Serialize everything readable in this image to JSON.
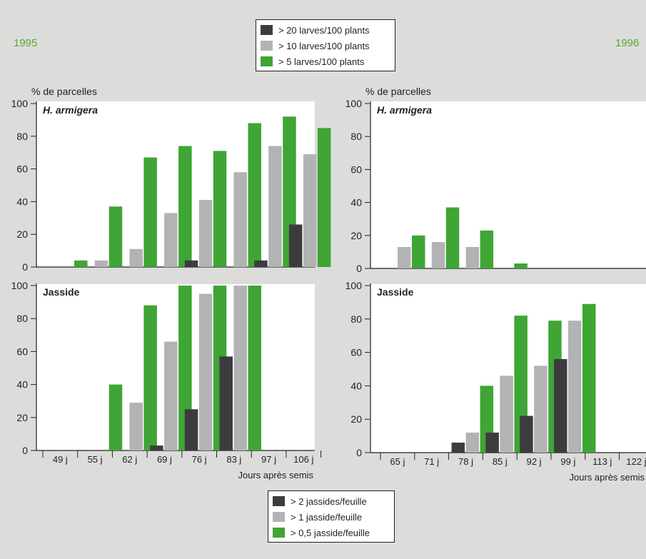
{
  "years": {
    "left": "1995",
    "right": "1996"
  },
  "colors": {
    "dark": "#3c3c3e",
    "grey": "#b3b3b5",
    "green": "#3fa535",
    "panel": "#ffffff",
    "background": "#dcdcdb"
  },
  "legend_top": {
    "items": [
      {
        "label": "> 20 larves/100 plants",
        "color": "#3c3c3e"
      },
      {
        "label": "> 10 larves/100 plants",
        "color": "#b3b3b5"
      },
      {
        "label": "> 5 larves/100 plants",
        "color": "#3fa535"
      }
    ]
  },
  "legend_bottom": {
    "items": [
      {
        "label": "> 2 jassides/feuille",
        "color": "#3c3c3e"
      },
      {
        "label": "> 1 jasside/feuille",
        "color": "#b3b3b5"
      },
      {
        "label": "> 0,5 jasside/feuille",
        "color": "#3fa535"
      }
    ]
  },
  "chart_data": [
    {
      "type": "bar",
      "year": "1995",
      "panel_label": "H. armigera",
      "ylabel": "% de parcelles",
      "ylim": [
        0,
        100
      ],
      "yticks": [
        0,
        20,
        40,
        60,
        80,
        100
      ],
      "categories": [
        "49 j",
        "55 j",
        "62 j",
        "69 j",
        "76 j",
        "83 j",
        "97 j",
        "106 j"
      ],
      "series": [
        {
          "name": "> 20 larves/100 plants",
          "values": [
            0,
            0,
            0,
            0,
            4,
            0,
            4,
            26
          ]
        },
        {
          "name": "> 10 larves/100 plants",
          "values": [
            0,
            4,
            11,
            33,
            41,
            58,
            74,
            69
          ]
        },
        {
          "name": "> 5 larves/100 plants",
          "values": [
            4,
            37,
            67,
            74,
            71,
            88,
            92,
            85
          ]
        }
      ]
    },
    {
      "type": "bar",
      "year": "1996",
      "panel_label": "H. armigera",
      "ylabel": "% de parcelles",
      "ylim": [
        0,
        100
      ],
      "yticks": [
        0,
        20,
        40,
        60,
        80,
        100
      ],
      "categories": [
        "65 j",
        "71 j",
        "78 j",
        "85 j",
        "92 j",
        "99 j",
        "113 j",
        "122 j"
      ],
      "series": [
        {
          "name": "> 20 larves/100 plants",
          "values": [
            0,
            0,
            0,
            0,
            0,
            0,
            0,
            0
          ]
        },
        {
          "name": "> 10 larves/100 plants",
          "values": [
            13,
            16,
            13,
            0,
            0,
            0,
            0,
            0
          ]
        },
        {
          "name": "> 5 larves/100 plants",
          "values": [
            20,
            37,
            23,
            3,
            0,
            0,
            0,
            0
          ]
        }
      ]
    },
    {
      "type": "bar",
      "year": "1995",
      "panel_label": "Jasside",
      "ylim": [
        0,
        100
      ],
      "yticks": [
        0,
        20,
        40,
        60,
        80,
        100
      ],
      "xlabel": "Jours après semis",
      "categories": [
        "49 j",
        "55 j",
        "62 j",
        "69 j",
        "76 j",
        "83 j",
        "97 j",
        "106 j"
      ],
      "series": [
        {
          "name": "> 2 jassides/feuille",
          "values": [
            0,
            0,
            0,
            3,
            25,
            57,
            0,
            0
          ]
        },
        {
          "name": "> 1 jasside/feuille",
          "values": [
            0,
            0,
            29,
            66,
            95,
            100,
            0,
            0
          ]
        },
        {
          "name": "> 0,5 jasside/feuille",
          "values": [
            0,
            40,
            88,
            100,
            100,
            100,
            0,
            0
          ]
        }
      ]
    },
    {
      "type": "bar",
      "year": "1996",
      "panel_label": "Jasside",
      "ylim": [
        0,
        100
      ],
      "yticks": [
        0,
        20,
        40,
        60,
        80,
        100
      ],
      "xlabel": "Jours après semis",
      "categories": [
        "65 j",
        "71 j",
        "78 j",
        "85 j",
        "92 j",
        "99 j",
        "113 j",
        "122 j"
      ],
      "series": [
        {
          "name": "> 2 jassides/feuille",
          "values": [
            0,
            0,
            6,
            12,
            22,
            56,
            0,
            0
          ]
        },
        {
          "name": "> 1 jasside/feuille",
          "values": [
            0,
            0,
            12,
            46,
            52,
            79,
            0,
            0
          ]
        },
        {
          "name": "> 0,5 jasside/feuille",
          "values": [
            0,
            0,
            40,
            82,
            79,
            89,
            0,
            0
          ]
        }
      ]
    }
  ]
}
